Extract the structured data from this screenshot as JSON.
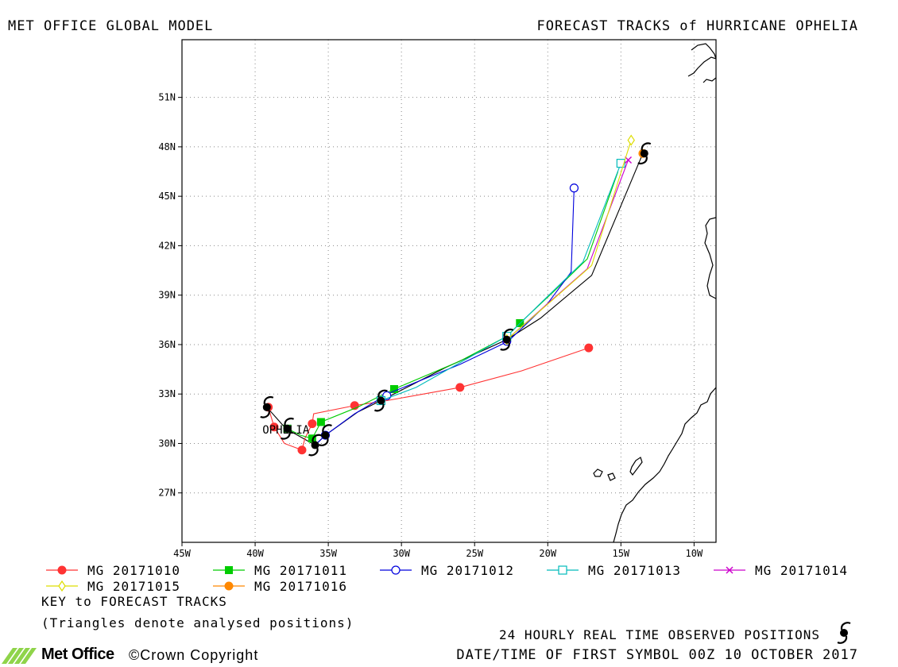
{
  "header": {
    "left_title": "MET OFFICE GLOBAL MODEL",
    "right_title": "FORECAST TRACKS of HURRICANE OPHELIA"
  },
  "footer": {
    "key_title": "KEY to FORECAST TRACKS",
    "key_note": "(Triangles denote analysed positions)",
    "observed_note": "24 HOURLY REAL TIME OBSERVED POSITIONS",
    "datetime_note": "DATE/TIME OF FIRST SYMBOL 00Z 10 OCTOBER 2017",
    "logo_text": "Met Office",
    "copyright": "©Crown Copyright"
  },
  "chart_data": {
    "type": "line",
    "xlim": [
      -45,
      -8.5
    ],
    "ylim": [
      24,
      54.5
    ],
    "x_ticks": [
      -45,
      -40,
      -35,
      -30,
      -25,
      -20,
      -15,
      -10
    ],
    "x_tick_labels": [
      "45W",
      "40W",
      "35W",
      "30W",
      "25W",
      "20W",
      "15W",
      "10W"
    ],
    "y_ticks": [
      27,
      30,
      33,
      36,
      39,
      42,
      45,
      48,
      51
    ],
    "y_tick_labels": [
      "27N",
      "30N",
      "33N",
      "36N",
      "39N",
      "42N",
      "45N",
      "48N",
      "51N"
    ],
    "grid": true,
    "storm_label": "OPHELIA",
    "storm_label_position": [
      -39.5,
      30.6
    ],
    "observed_track": {
      "name": "observed",
      "color": "#000000",
      "points": [
        [
          -39.2,
          32.2
        ],
        [
          -37.9,
          30.9
        ],
        [
          -36.7,
          30.3
        ],
        [
          -35.9,
          29.9
        ],
        [
          -35.2,
          30.5
        ],
        [
          -33.0,
          31.9
        ],
        [
          -31.4,
          32.6
        ],
        [
          -27.0,
          34.6
        ],
        [
          -22.8,
          36.3
        ],
        [
          -20.5,
          37.6
        ],
        [
          -17.0,
          40.2
        ],
        [
          -13.5,
          47.6
        ]
      ],
      "symbol_points": [
        [
          -39.2,
          32.2
        ],
        [
          -37.8,
          30.9
        ],
        [
          -35.9,
          29.9
        ],
        [
          -35.2,
          30.5
        ],
        [
          -31.4,
          32.6
        ],
        [
          -22.8,
          36.3
        ],
        [
          -13.4,
          47.6
        ]
      ]
    },
    "series": [
      {
        "name": "MG 20171010",
        "color": "#ff3333",
        "marker": "filled-circle",
        "points": [
          [
            -39.1,
            32.2
          ],
          [
            -38.7,
            31.0
          ],
          [
            -38.0,
            30.0
          ],
          [
            -36.8,
            29.6
          ],
          [
            -36.6,
            30.3
          ],
          [
            -36.1,
            31.2
          ],
          [
            -36.0,
            31.8
          ],
          [
            -33.2,
            32.3
          ],
          [
            -31.0,
            32.6
          ],
          [
            -26.0,
            33.4
          ],
          [
            -21.8,
            34.4
          ],
          [
            -17.2,
            35.8
          ]
        ],
        "marker_points": [
          [
            -39.1,
            32.2
          ],
          [
            -38.7,
            31.0
          ],
          [
            -36.8,
            29.6
          ],
          [
            -36.1,
            31.2
          ],
          [
            -33.2,
            32.3
          ],
          [
            -26.0,
            33.4
          ],
          [
            -17.2,
            35.8
          ]
        ]
      },
      {
        "name": "MG 20171011",
        "color": "#00cc00",
        "marker": "filled-square",
        "points": [
          [
            -37.8,
            30.9
          ],
          [
            -36.9,
            30.5
          ],
          [
            -36.1,
            30.3
          ],
          [
            -35.5,
            31.3
          ],
          [
            -33.0,
            32.2
          ],
          [
            -30.5,
            33.3
          ],
          [
            -26.0,
            35.0
          ],
          [
            -22.8,
            36.5
          ],
          [
            -21.9,
            37.3
          ],
          [
            -19.5,
            39.3
          ],
          [
            -17.3,
            41.2
          ],
          [
            -15.2,
            46.5
          ]
        ],
        "marker_points": [
          [
            -37.8,
            30.9
          ],
          [
            -36.1,
            30.3
          ],
          [
            -35.5,
            31.3
          ],
          [
            -30.5,
            33.3
          ],
          [
            -21.9,
            37.3
          ]
        ]
      },
      {
        "name": "MG 20171012",
        "color": "#0000dd",
        "marker": "open-circle",
        "points": [
          [
            -35.9,
            29.9
          ],
          [
            -35.2,
            30.5
          ],
          [
            -33.2,
            31.8
          ],
          [
            -31.3,
            32.8
          ],
          [
            -30.7,
            33.1
          ],
          [
            -26.0,
            34.8
          ],
          [
            -22.7,
            36.2
          ],
          [
            -20.0,
            38.5
          ],
          [
            -18.4,
            40.4
          ],
          [
            -18.2,
            45.5
          ]
        ],
        "marker_points": [
          [
            -35.2,
            30.5
          ],
          [
            -31.0,
            32.9
          ],
          [
            -22.8,
            36.2
          ],
          [
            -18.2,
            45.5
          ]
        ]
      },
      {
        "name": "MG 20171013",
        "color": "#00bbbb",
        "marker": "open-square",
        "points": [
          [
            -31.4,
            32.6
          ],
          [
            -29.0,
            33.4
          ],
          [
            -26.0,
            34.9
          ],
          [
            -22.8,
            36.5
          ],
          [
            -20.5,
            38.5
          ],
          [
            -17.6,
            41.0
          ],
          [
            -15.0,
            47.0
          ]
        ],
        "marker_points": [
          [
            -31.4,
            32.6
          ],
          [
            -22.8,
            36.5
          ],
          [
            -15.0,
            47.0
          ]
        ]
      },
      {
        "name": "MG 20171014",
        "color": "#cc00cc",
        "marker": "cross",
        "points": [
          [
            -22.8,
            36.3
          ],
          [
            -20.5,
            38.1
          ],
          [
            -17.3,
            40.6
          ],
          [
            -14.5,
            47.2
          ]
        ],
        "marker_points": [
          [
            -22.8,
            36.3
          ],
          [
            -14.5,
            47.2
          ]
        ]
      },
      {
        "name": "MG 20171015",
        "color": "#dddd00",
        "marker": "open-diamond",
        "points": [
          [
            -22.8,
            36.3
          ],
          [
            -20.2,
            38.3
          ],
          [
            -17.0,
            40.8
          ],
          [
            -14.3,
            48.4
          ]
        ],
        "marker_points": [
          [
            -22.8,
            36.3
          ],
          [
            -14.3,
            48.4
          ]
        ]
      },
      {
        "name": "MG 20171016",
        "color": "#ff8800",
        "marker": "filled-circle",
        "points": [
          [
            -13.5,
            47.6
          ]
        ],
        "marker_points": [
          [
            -13.5,
            47.6
          ]
        ]
      }
    ]
  }
}
